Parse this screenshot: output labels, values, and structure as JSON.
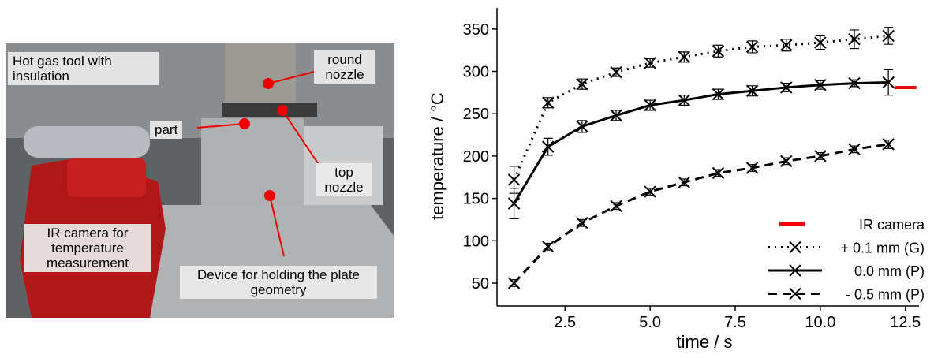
{
  "photo": {
    "labels": [
      "Hot gas tool with insulation",
      "round nozzle",
      "part",
      "top nozzle",
      "IR camera for temperature measurement",
      "Device for holding the plate geometry"
    ]
  },
  "chart_data": {
    "type": "line",
    "x_label": "time / s",
    "y_label": "temperature / °C",
    "xlim": [
      0.5,
      12.9
    ],
    "ylim": [
      23,
      375
    ],
    "xticks": [
      2.5,
      {
        "value": 5,
        "label": "5.0"
      },
      7.5,
      {
        "value": 10,
        "label": "10.0"
      },
      12.5
    ],
    "yticks": [
      50,
      100,
      150,
      200,
      250,
      300,
      350
    ],
    "legend": "lower right",
    "series": [
      {
        "name": "IR camera",
        "color": "#ff0000",
        "style": "segment",
        "x": [
          12.5
        ],
        "values": [
          281
        ]
      },
      {
        "name": "+ 0.1 mm (G)",
        "color": "#000000",
        "style": "dotted",
        "x": [
          1,
          2,
          3,
          4,
          5,
          6,
          7,
          8,
          9,
          10,
          11,
          12
        ],
        "values": [
          172,
          263,
          285,
          299,
          310,
          317,
          324,
          329,
          331,
          334,
          338,
          342
        ],
        "errors": [
          16,
          6,
          6,
          5,
          5,
          6,
          7,
          7,
          7,
          8,
          11,
          10
        ]
      },
      {
        "name": "0.0 mm (P)",
        "color": "#000000",
        "style": "solid",
        "x": [
          1,
          2,
          3,
          4,
          5,
          6,
          7,
          8,
          9,
          10,
          11,
          12
        ],
        "values": [
          144,
          211,
          235,
          248,
          260,
          266,
          273,
          277,
          281,
          284,
          286,
          287
        ],
        "errors": [
          18,
          10,
          7,
          6,
          6,
          6,
          6,
          6,
          5,
          5,
          4,
          15
        ]
      },
      {
        "name": "- 0.5 mm (P)",
        "color": "#000000",
        "style": "dashed",
        "x": [
          1,
          2,
          3,
          4,
          5,
          6,
          7,
          8,
          9,
          10,
          11,
          12
        ],
        "values": [
          50,
          93,
          121,
          141,
          158,
          169,
          180,
          186,
          194,
          200,
          208,
          214
        ],
        "errors": [
          4,
          4,
          4,
          4,
          4,
          4,
          4,
          4,
          4,
          4,
          4,
          5
        ]
      }
    ]
  }
}
